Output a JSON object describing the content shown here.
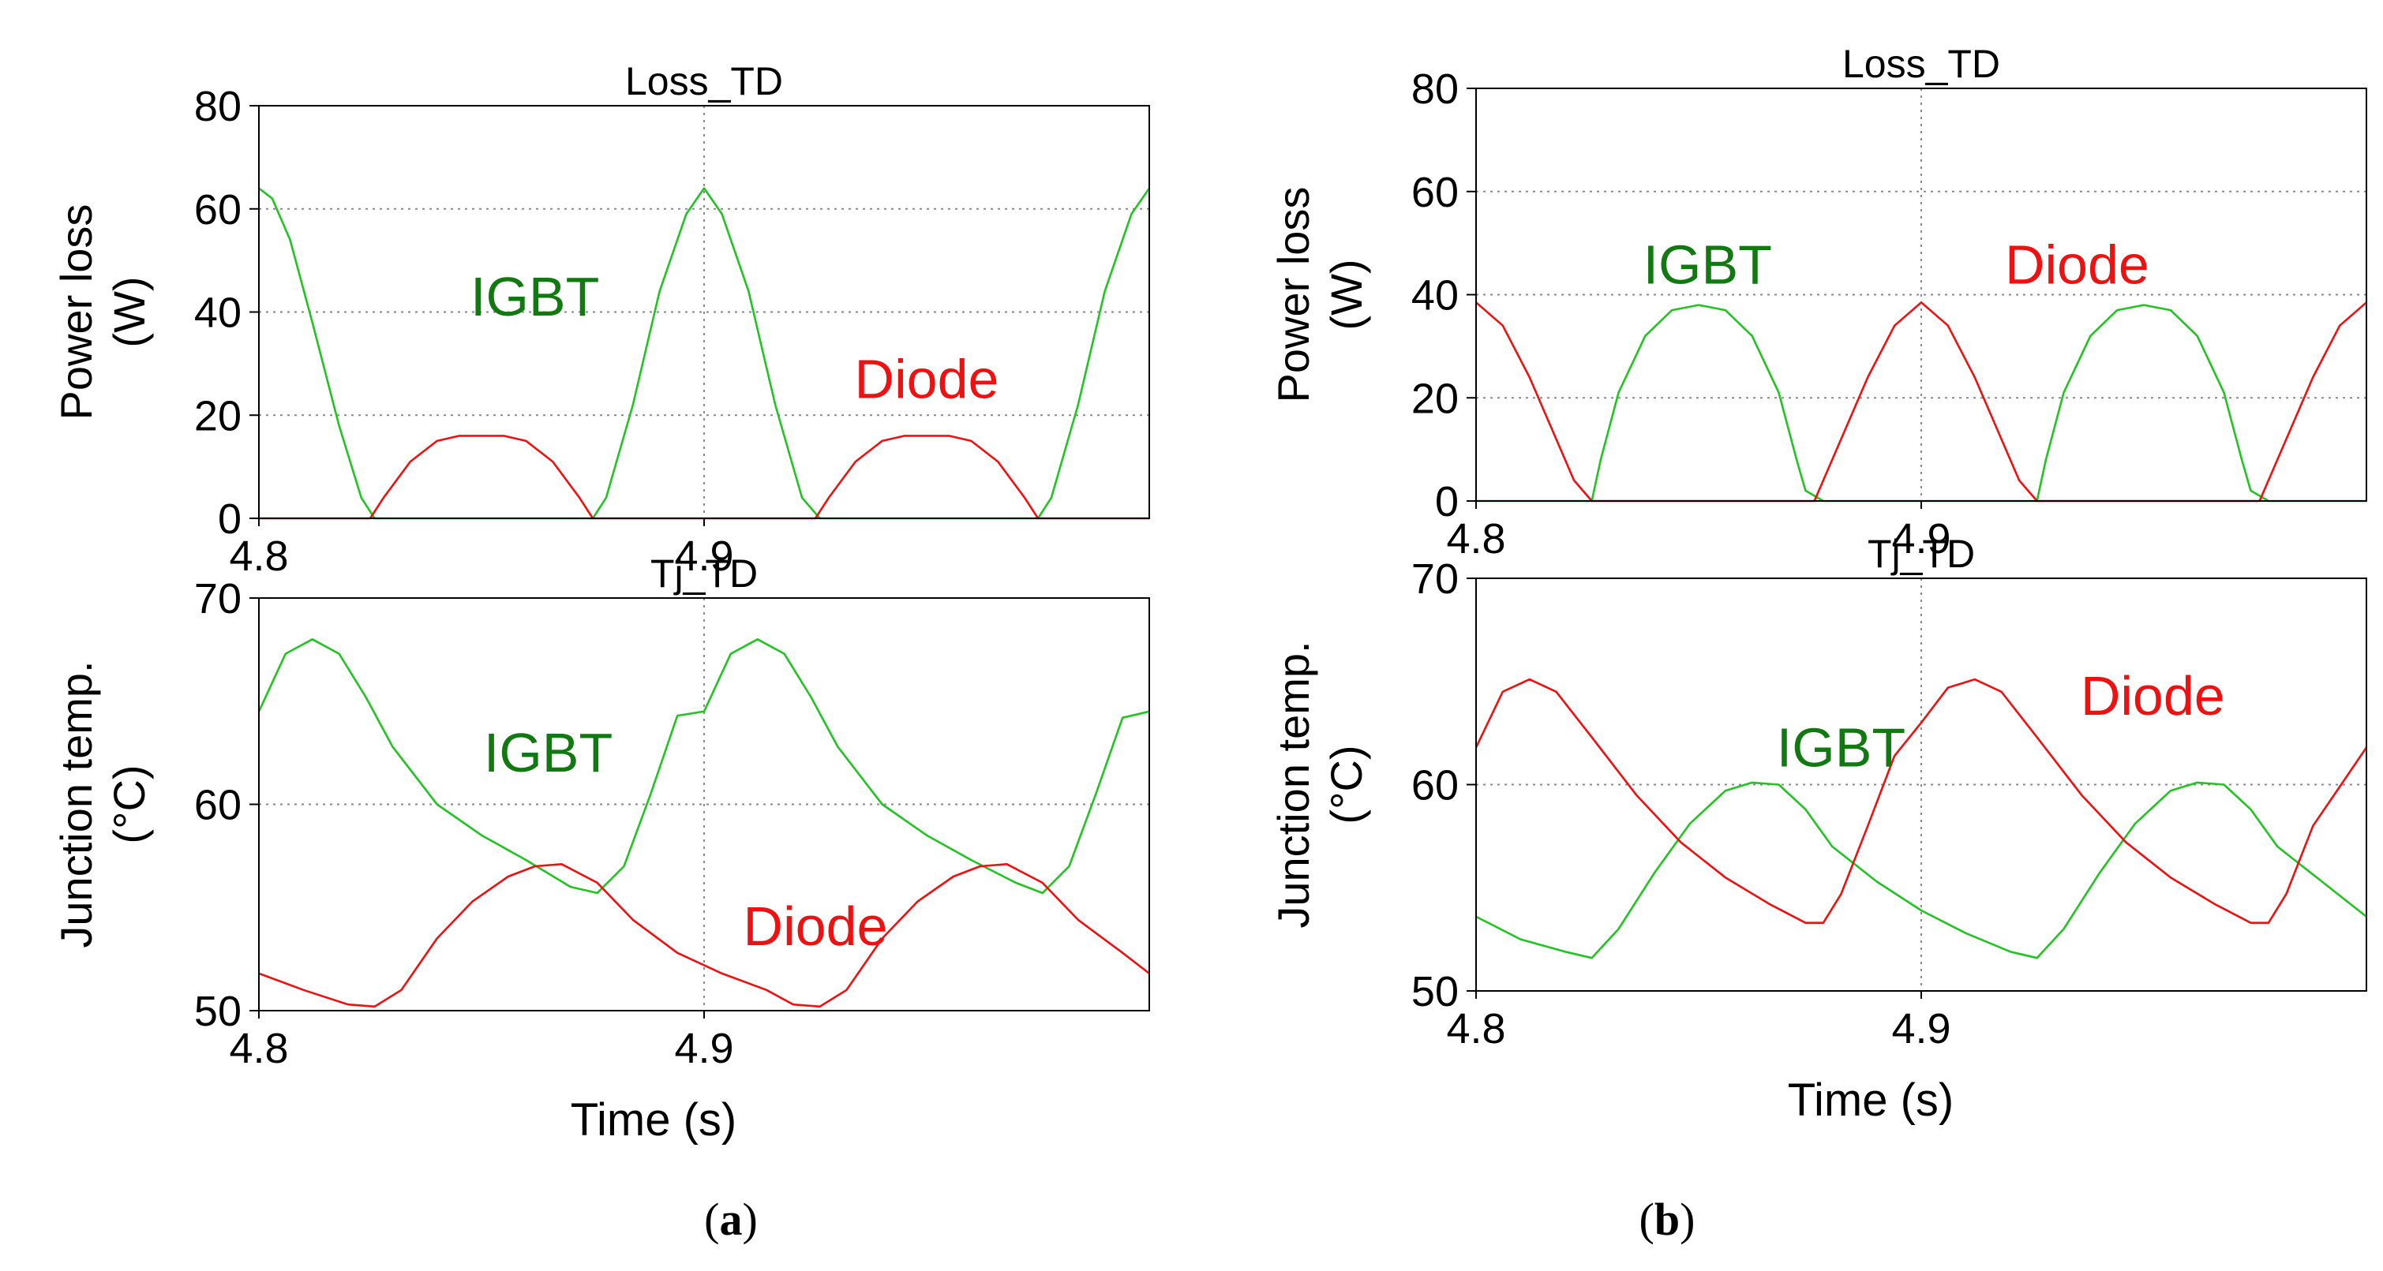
{
  "figure": {
    "panel_labels": [
      "(a)",
      "(b)"
    ],
    "panel_letters": [
      "a",
      "b"
    ]
  },
  "colors": {
    "igbt": "#22c322",
    "diode": "#ee1111",
    "igbt_label": "#127812",
    "diode_label": "#ee1111",
    "axis": "#000000",
    "grid": "#8a8a8a"
  },
  "chart_data": [
    {
      "panel": "a",
      "type": "line",
      "title": "Loss_TD",
      "xlabel": "",
      "ylabel": [
        "Power loss",
        "(W)"
      ],
      "xlim": [
        4.8,
        5.0
      ],
      "ylim": [
        0,
        80
      ],
      "xticks": [
        4.8,
        4.9
      ],
      "yticks": [
        0,
        20,
        40,
        60,
        80
      ],
      "grid": true,
      "series": [
        {
          "name": "IGBT",
          "label": "IGBT",
          "label_pos": [
            4.862,
            43
          ],
          "x": [
            4.8,
            4.803,
            4.807,
            4.812,
            4.818,
            4.823,
            4.826,
            4.83,
            4.875,
            4.878,
            4.884,
            4.89,
            4.896,
            4.9,
            4.904,
            4.91,
            4.916,
            4.922,
            4.926,
            4.93,
            4.975,
            4.978,
            4.984,
            4.99,
            4.996,
            5.0
          ],
          "y": [
            64,
            62,
            54,
            38,
            18,
            4,
            0,
            0,
            0,
            4,
            22,
            44,
            59,
            64,
            59,
            44,
            22,
            4,
            0,
            0,
            0,
            4,
            22,
            44,
            59,
            64
          ]
        },
        {
          "name": "Diode",
          "label": "Diode",
          "label_pos": [
            4.95,
            27
          ],
          "x": [
            4.8,
            4.825,
            4.828,
            4.834,
            4.84,
            4.845,
            4.85,
            4.855,
            4.86,
            4.866,
            4.872,
            4.875,
            4.925,
            4.928,
            4.934,
            4.94,
            4.945,
            4.95,
            4.955,
            4.96,
            4.966,
            4.972,
            4.975,
            5.0
          ],
          "y": [
            0,
            0,
            4,
            11,
            15,
            16,
            16,
            16,
            15,
            11,
            4,
            0,
            0,
            4,
            11,
            15,
            16,
            16,
            16,
            15,
            11,
            4,
            0,
            0
          ]
        }
      ]
    },
    {
      "panel": "a",
      "type": "line",
      "title": "Tj_TD",
      "xlabel": "Time (s)",
      "ylabel": [
        "Junction temp.",
        "(°C)"
      ],
      "xlim": [
        4.8,
        5.0
      ],
      "ylim": [
        50,
        70
      ],
      "xticks": [
        4.8,
        4.9
      ],
      "yticks": [
        50,
        60,
        70
      ],
      "grid": true,
      "series": [
        {
          "name": "IGBT",
          "label": "IGBT",
          "label_pos": [
            4.865,
            62.5
          ],
          "x": [
            4.8,
            4.806,
            4.812,
            4.818,
            4.824,
            4.83,
            4.84,
            4.85,
            4.86,
            4.87,
            4.876,
            4.882,
            4.888,
            4.894,
            4.9,
            4.906,
            4.912,
            4.918,
            4.924,
            4.93,
            4.94,
            4.95,
            4.96,
            4.97,
            4.976,
            4.982,
            4.988,
            4.994,
            5.0
          ],
          "y": [
            64.5,
            67.3,
            68,
            67.3,
            65.2,
            62.8,
            60,
            58.5,
            57.3,
            56,
            55.7,
            57,
            60.5,
            64.3,
            64.5,
            67.3,
            68,
            67.3,
            65.2,
            62.8,
            60,
            58.5,
            57.3,
            56.2,
            55.7,
            57,
            60.5,
            64.2,
            64.5
          ]
        },
        {
          "name": "Diode",
          "label": "Diode",
          "label_pos": [
            4.925,
            54.1
          ],
          "x": [
            4.8,
            4.81,
            4.82,
            4.826,
            4.832,
            4.84,
            4.848,
            4.856,
            4.862,
            4.868,
            4.876,
            4.884,
            4.894,
            4.904,
            4.914,
            4.92,
            4.926,
            4.932,
            4.94,
            4.948,
            4.956,
            4.962,
            4.968,
            4.976,
            4.984,
            4.994,
            5.0
          ],
          "y": [
            51.8,
            51,
            50.3,
            50.2,
            51,
            53.5,
            55.3,
            56.5,
            57,
            57.1,
            56.2,
            54.4,
            52.8,
            51.8,
            51,
            50.3,
            50.2,
            51,
            53.5,
            55.3,
            56.5,
            57,
            57.1,
            56.2,
            54.4,
            52.8,
            51.8
          ]
        }
      ]
    },
    {
      "panel": "b",
      "type": "line",
      "title": "Loss_TD",
      "xlabel": "",
      "ylabel": [
        "Power loss",
        "(W)"
      ],
      "xlim": [
        4.8,
        5.0
      ],
      "ylim": [
        0,
        80
      ],
      "xticks": [
        4.8,
        4.9
      ],
      "yticks": [
        0,
        20,
        40,
        60,
        80
      ],
      "grid": true,
      "series": [
        {
          "name": "IGBT",
          "label": "IGBT",
          "label_pos": [
            4.852,
            45.8
          ],
          "x": [
            4.8,
            4.826,
            4.828,
            4.832,
            4.838,
            4.844,
            4.85,
            4.856,
            4.862,
            4.868,
            4.872,
            4.874,
            4.878,
            4.926,
            4.928,
            4.932,
            4.938,
            4.944,
            4.95,
            4.956,
            4.962,
            4.968,
            4.972,
            4.974,
            4.978,
            5.0
          ],
          "y": [
            0,
            0,
            8,
            21,
            32,
            37,
            38,
            37,
            32,
            21,
            8,
            2,
            0,
            0,
            8,
            21,
            32,
            37,
            38,
            37,
            32,
            21,
            8,
            2,
            0,
            0
          ]
        },
        {
          "name": "Diode",
          "label": "Diode",
          "label_pos": [
            4.935,
            45.8
          ],
          "x": [
            4.8,
            4.806,
            4.812,
            4.818,
            4.822,
            4.826,
            4.876,
            4.878,
            4.882,
            4.888,
            4.894,
            4.9,
            4.906,
            4.912,
            4.918,
            4.922,
            4.926,
            4.976,
            4.978,
            4.982,
            4.988,
            4.994,
            5.0
          ],
          "y": [
            38.5,
            34,
            24,
            12,
            4,
            0,
            0,
            4,
            12,
            24,
            34,
            38.5,
            34,
            24,
            12,
            4,
            0,
            0,
            4,
            12,
            24,
            34,
            38.5
          ]
        }
      ]
    },
    {
      "panel": "b",
      "type": "line",
      "title": "Tj_TD",
      "xlabel": "Time (s)",
      "ylabel": [
        "Junction temp.",
        "(°C)"
      ],
      "xlim": [
        4.8,
        5.0
      ],
      "ylim": [
        50,
        70
      ],
      "xticks": [
        4.8,
        4.9
      ],
      "yticks": [
        50,
        60,
        70
      ],
      "grid": true,
      "series": [
        {
          "name": "IGBT",
          "label": "IGBT",
          "label_pos": [
            4.882,
            61.8
          ],
          "x": [
            4.8,
            4.81,
            4.82,
            4.826,
            4.832,
            4.84,
            4.848,
            4.856,
            4.862,
            4.868,
            4.874,
            4.88,
            4.89,
            4.9,
            4.91,
            4.92,
            4.926,
            4.932,
            4.94,
            4.948,
            4.956,
            4.962,
            4.968,
            4.974,
            4.98,
            4.99,
            5.0
          ],
          "y": [
            53.6,
            52.5,
            51.9,
            51.6,
            53,
            55.7,
            58.1,
            59.7,
            60.1,
            60,
            58.8,
            57,
            55.3,
            53.9,
            52.8,
            51.9,
            51.6,
            53,
            55.7,
            58.1,
            59.7,
            60.1,
            60,
            58.8,
            57,
            55.3,
            53.6
          ]
        },
        {
          "name": "Diode",
          "label": "Diode",
          "label_pos": [
            4.952,
            64.3
          ],
          "x": [
            4.8,
            4.806,
            4.812,
            4.818,
            4.826,
            4.836,
            4.846,
            4.856,
            4.866,
            4.874,
            4.878,
            4.882,
            4.888,
            4.894,
            4.9,
            4.906,
            4.912,
            4.918,
            4.926,
            4.936,
            4.946,
            4.956,
            4.966,
            4.974,
            4.978,
            4.982,
            4.988,
            4.994,
            5.0
          ],
          "y": [
            61.8,
            64.5,
            65.1,
            64.5,
            62.3,
            59.5,
            57.2,
            55.5,
            54.2,
            53.3,
            53.3,
            54.7,
            58,
            61.4,
            63,
            64.7,
            65.1,
            64.5,
            62.3,
            59.5,
            57.2,
            55.5,
            54.2,
            53.3,
            53.3,
            54.7,
            58,
            59.9,
            61.8
          ]
        }
      ]
    }
  ]
}
